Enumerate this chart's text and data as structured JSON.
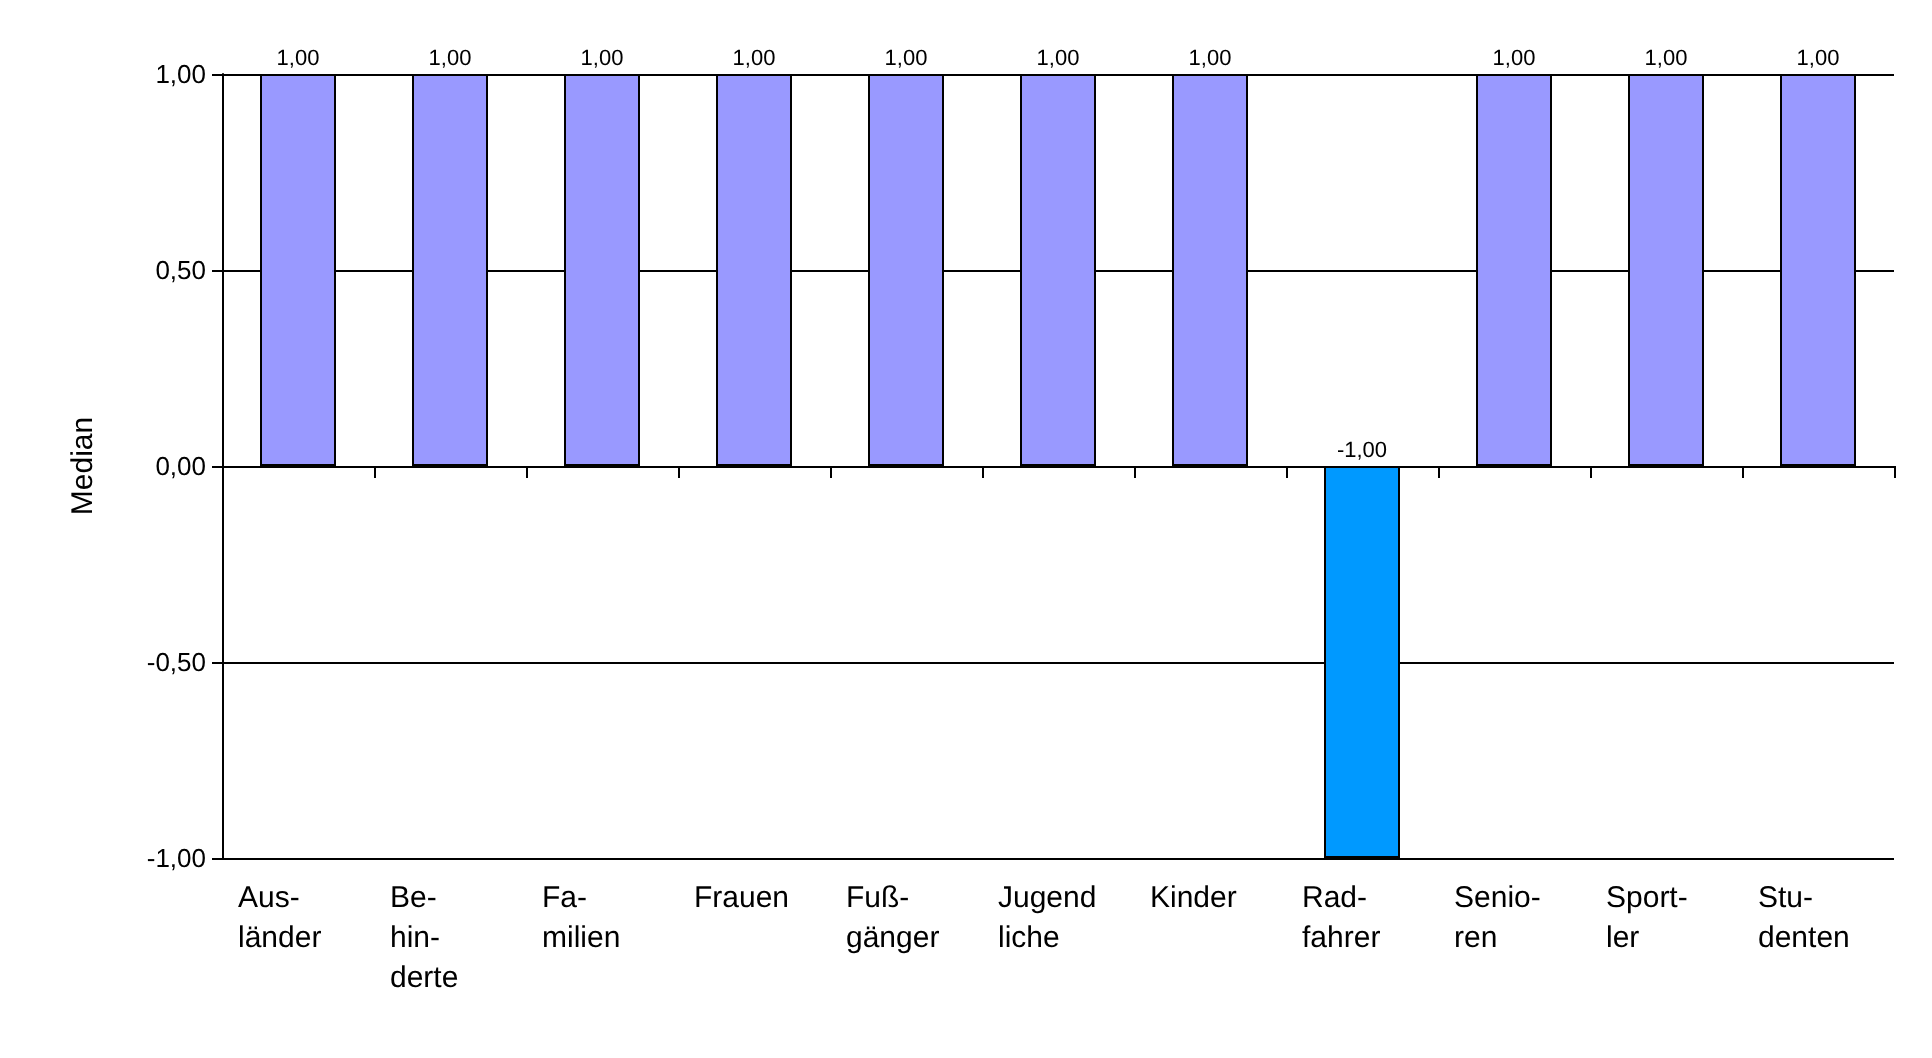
{
  "chart_data": {
    "type": "bar",
    "ylabel": "Median",
    "categories": [
      "Aus-\nländer",
      "Be-\nhin-\nderte",
      "Fa-\nmilien",
      "Frauen",
      "Fuß-\ngänger",
      "Jugend\nliche",
      "Kinder",
      "Rad-\nfahrer",
      "Senio-\nren",
      "Sport-\nler",
      "Stu-\ndenten"
    ],
    "values": [
      1,
      1,
      1,
      1,
      1,
      1,
      1,
      -1,
      1,
      1,
      1
    ],
    "colors": [
      "#9999ff",
      "#9999ff",
      "#9999ff",
      "#9999ff",
      "#9999ff",
      "#9999ff",
      "#9999ff",
      "#0099ff",
      "#9999ff",
      "#9999ff",
      "#9999ff"
    ],
    "value_labels": [
      "1,00",
      "1,00",
      "1,00",
      "1,00",
      "1,00",
      "1,00",
      "1,00",
      "-1,00",
      "1,00",
      "1,00",
      "1,00"
    ],
    "ylim": [
      -1,
      1
    ],
    "yticks": [
      {
        "value": -1,
        "label": "-1,00"
      },
      {
        "value": -0.5,
        "label": "-0,50"
      },
      {
        "value": 0,
        "label": "0,00"
      },
      {
        "value": 0.5,
        "label": "0,50"
      },
      {
        "value": 1,
        "label": "1,00"
      }
    ],
    "grid": "y"
  }
}
